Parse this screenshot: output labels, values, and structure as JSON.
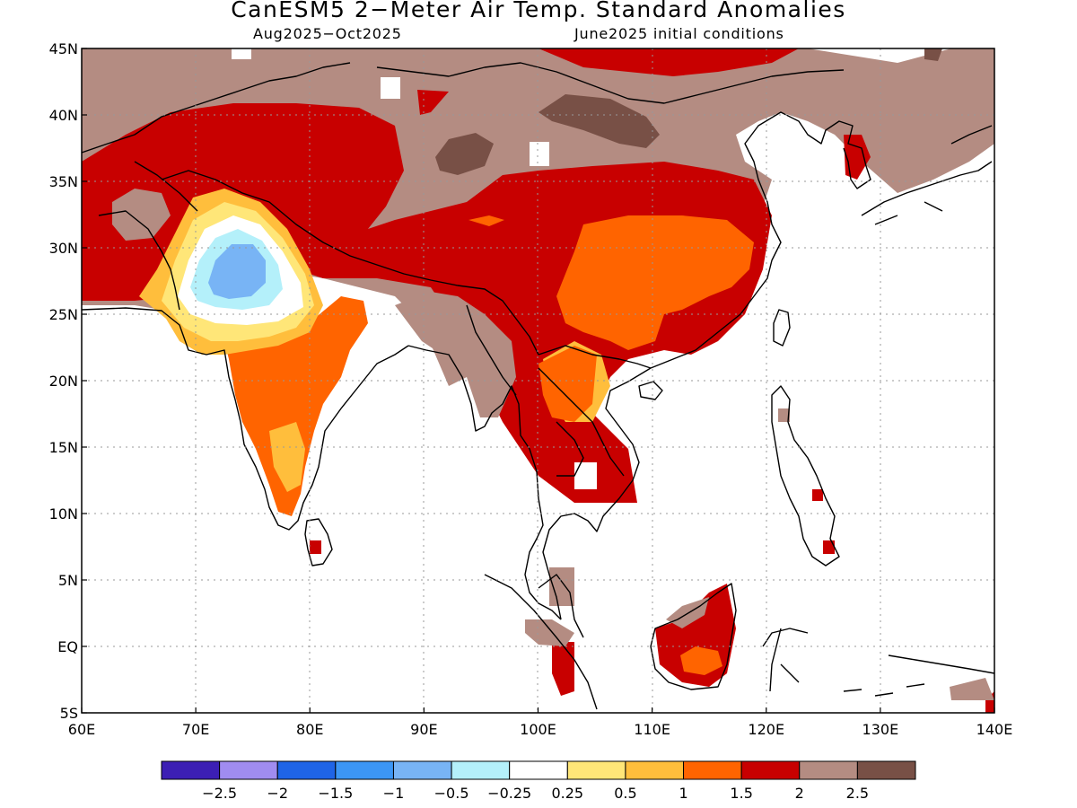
{
  "title": "CanESM5 2−Meter Air Temp. Standard Anomalies",
  "subtitle_left": "Aug2025−Oct2025",
  "subtitle_right": "June2025 initial conditions",
  "map": {
    "lon_range": [
      60,
      140
    ],
    "lat_range": [
      -5,
      45
    ],
    "lon_ticks": [
      "60E",
      "70E",
      "80E",
      "90E",
      "100E",
      "110E",
      "120E",
      "130E",
      "140E"
    ],
    "lat_ticks": [
      "45N",
      "40N",
      "35N",
      "30N",
      "25N",
      "20N",
      "15N",
      "10N",
      "5N",
      "EQ",
      "5S"
    ],
    "gridlines": "dotted"
  },
  "colorbar": {
    "colors": [
      "#3c1fb4",
      "#a08cf0",
      "#1f64e6",
      "#3c96f5",
      "#78b4f5",
      "#b4f0fa",
      "#ffffff",
      "#ffe678",
      "#ffbe3c",
      "#ff6400",
      "#c80000",
      "#b48c82",
      "#785046"
    ],
    "labels": [
      "−2.5",
      "−2",
      "−1.5",
      "−1",
      "−0.5",
      "−0.25",
      "0.25",
      "0.5",
      "1",
      "1.5",
      "2",
      "2.5"
    ]
  },
  "legend_colors": {
    "anom_0p5": "#ffe678",
    "anom_1": "#ffbe3c",
    "anom_1p5": "#ff6400",
    "anom_2": "#c80000",
    "anom_2p5": "#b48c82",
    "anom_3": "#785046",
    "neg_0p25": "#b4f0fa",
    "neg_0p5": "#78b4f5",
    "coast": "#000000"
  }
}
